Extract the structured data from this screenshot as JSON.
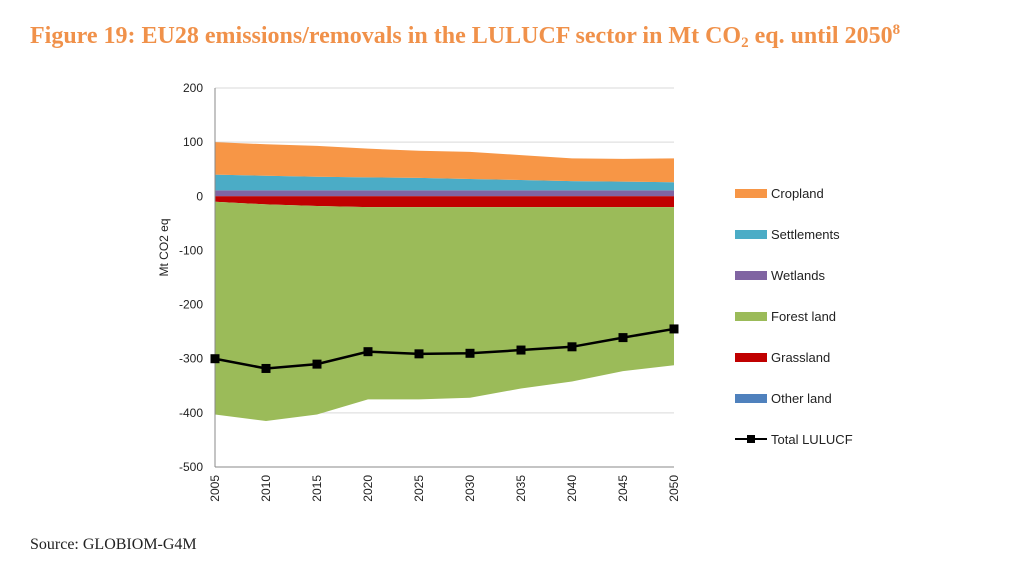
{
  "title": {
    "pre": "Figure 19: EU28 emissions/removals in the LULUCF sector in Mt CO",
    "sub": "2",
    "post": " eq. until 2050",
    "sup": "8"
  },
  "source": "Source: GLOBIOM-G4M",
  "colors": {
    "cropland": "#F79646",
    "settlements": "#4BACC6",
    "wetlands": "#8064A2",
    "forest_land": "#9BBB59",
    "grassland": "#C00000",
    "other_land": "#4F81BD",
    "total": "#000000"
  },
  "chart_data": {
    "type": "area",
    "title": "EU28 emissions/removals in the LULUCF sector in Mt CO2 eq. until 2050",
    "xlabel": "",
    "ylabel": "Mt CO2 eq",
    "x": [
      "2005",
      "2010",
      "2015",
      "2020",
      "2025",
      "2030",
      "2035",
      "2040",
      "2045",
      "2050"
    ],
    "ylim": [
      -500,
      200
    ],
    "yticks": [
      "200",
      "100",
      "0",
      "-100",
      "-200",
      "-300",
      "-400",
      "-500"
    ],
    "grid": true,
    "legend_position": "right",
    "series": [
      {
        "key": "cropland",
        "name": "Cropland",
        "kind": "area",
        "values": [
          60,
          58,
          57,
          53,
          50,
          50,
          46,
          42,
          42,
          44
        ]
      },
      {
        "key": "settlements",
        "name": "Settlements",
        "kind": "area",
        "values": [
          29,
          27,
          25,
          24,
          23,
          21,
          19,
          17,
          16,
          15
        ]
      },
      {
        "key": "wetlands",
        "name": "Wetlands",
        "kind": "area",
        "values": [
          11,
          11,
          11,
          11,
          11,
          11,
          11,
          11,
          11,
          11
        ]
      },
      {
        "key": "forest_land",
        "name": "Forest land",
        "kind": "area",
        "values": [
          -393,
          -400,
          -385,
          -355,
          -355,
          -352,
          -335,
          -322,
          -303,
          -292
        ]
      },
      {
        "key": "grassland",
        "name": "Grassland",
        "kind": "area",
        "values": [
          -10,
          -15,
          -18,
          -20,
          -20,
          -20,
          -20,
          -20,
          -20,
          -20
        ]
      },
      {
        "key": "other_land",
        "name": "Other land",
        "kind": "area",
        "values": [
          0,
          0,
          0,
          0,
          0,
          0,
          0,
          0,
          0,
          0
        ]
      },
      {
        "key": "total",
        "name": "Total LULUCF",
        "kind": "line",
        "values": [
          -300,
          -318,
          -310,
          -287,
          -291,
          -290,
          -284,
          -278,
          -261,
          -245
        ]
      }
    ]
  }
}
